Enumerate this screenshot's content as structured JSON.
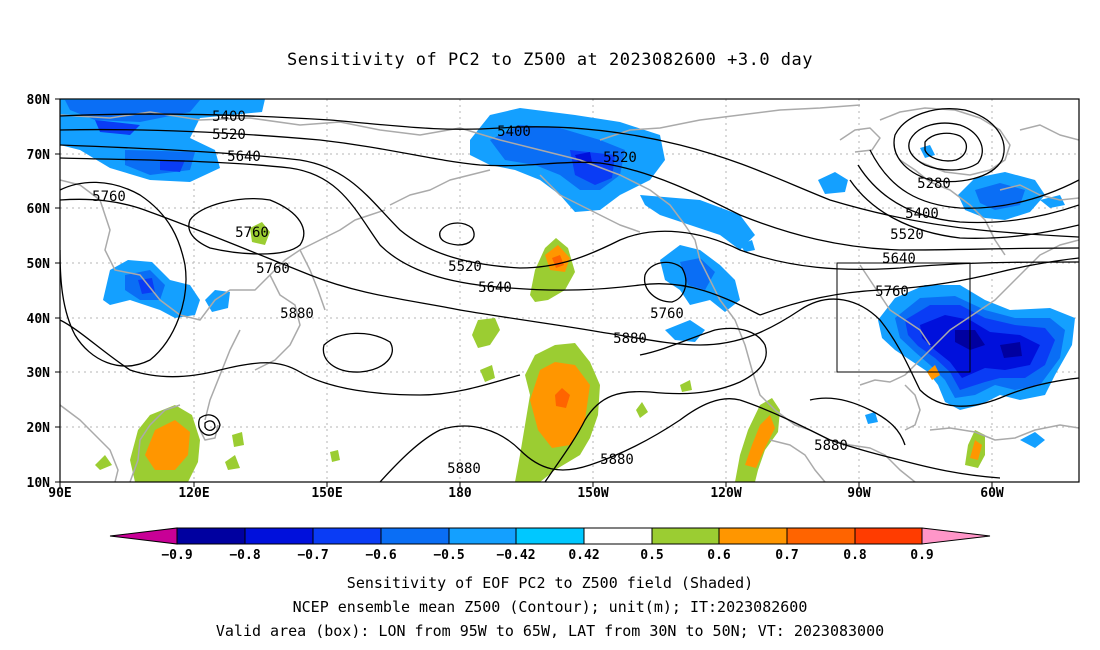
{
  "title": "Sensitivity of PC2 to Z500 at 2023082600 +3.0 day",
  "lat_labels": [
    "80N",
    "70N",
    "60N",
    "50N",
    "40N",
    "30N",
    "20N",
    "10N"
  ],
  "lon_labels": [
    "90E",
    "120E",
    "150E",
    "180",
    "150W",
    "120W",
    "90W",
    "60W"
  ],
  "contour_labels": [
    "5400",
    "5520",
    "5640",
    "5760",
    "5760",
    "5760",
    "5880",
    "5400",
    "5520",
    "5520",
    "5640",
    "5760",
    "5880",
    "5880",
    "5880",
    "5880",
    "5280",
    "5400",
    "5520",
    "5640",
    "5760"
  ],
  "colorbar": {
    "labels": [
      "−0.9",
      "−0.8",
      "−0.7",
      "−0.6",
      "−0.5",
      "−0.42",
      "0.42",
      "0.5",
      "0.6",
      "0.7",
      "0.8",
      "0.9"
    ],
    "colors": [
      "#0000a0",
      "#0010dc",
      "#0a3cf5",
      "#0a6ef5",
      "#14a0ff",
      "#00c8ff",
      "#ffffff",
      "#9bcd32",
      "#ff9600",
      "#ff6400",
      "#ff3c00",
      "#ff0000"
    ],
    "low_end": "#c80096",
    "high_end": "#ff96c8"
  },
  "captions": [
    "Sensitivity of EOF PC2 to Z500 field (Shaded)",
    "NCEP ensemble mean Z500 (Contour); unit(m); IT:2023082600",
    "Valid area (box): LON from 95W to 65W, LAT from 30N to 50N; VT: 2023083000"
  ]
}
